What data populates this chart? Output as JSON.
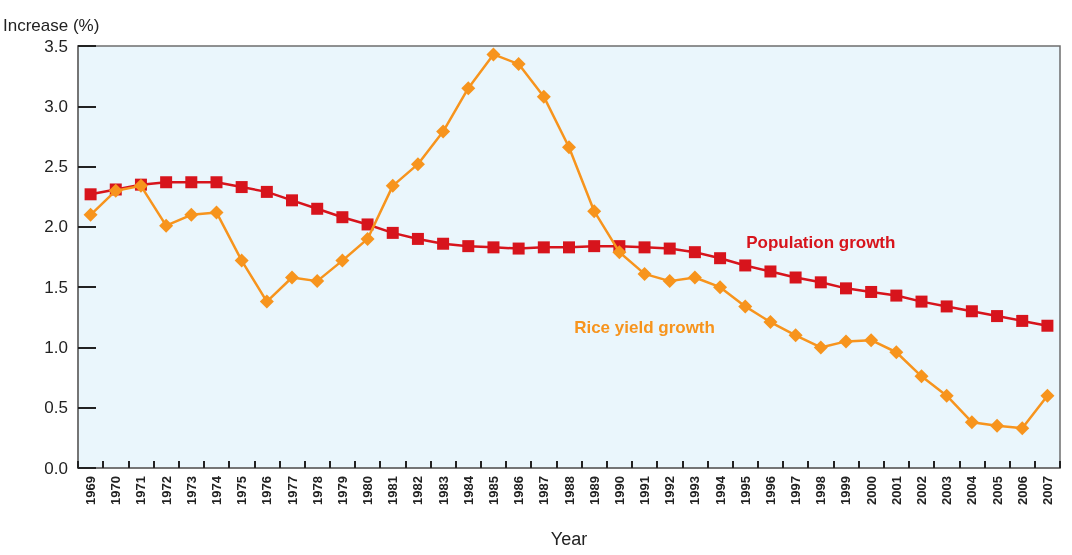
{
  "chart_data": {
    "type": "line",
    "xlabel": "Year",
    "ylabel": "Increase (%)",
    "categories": [
      "1969",
      "1970",
      "1971",
      "1972",
      "1973",
      "1974",
      "1975",
      "1976",
      "1977",
      "1978",
      "1979",
      "1980",
      "1981",
      "1982",
      "1983",
      "1984",
      "1985",
      "1986",
      "1987",
      "1988",
      "1989",
      "1990",
      "1991",
      "1992",
      "1993",
      "1994",
      "1995",
      "1996",
      "1997",
      "1998",
      "1999",
      "2000",
      "2001",
      "2002",
      "2003",
      "2004",
      "2005",
      "2006",
      "2007"
    ],
    "series": [
      {
        "name": "Population growth",
        "color": "#d7141c",
        "marker": "square",
        "values": [
          2.27,
          2.31,
          2.35,
          2.37,
          2.37,
          2.37,
          2.33,
          2.29,
          2.22,
          2.15,
          2.08,
          2.02,
          1.95,
          1.9,
          1.86,
          1.84,
          1.83,
          1.82,
          1.83,
          1.83,
          1.84,
          1.84,
          1.83,
          1.82,
          1.79,
          1.74,
          1.68,
          1.63,
          1.58,
          1.54,
          1.49,
          1.46,
          1.43,
          1.38,
          1.34,
          1.3,
          1.26,
          1.22,
          1.18
        ]
      },
      {
        "name": "Rice yield growth",
        "color": "#f7941d",
        "marker": "diamond",
        "values": [
          2.1,
          2.3,
          2.34,
          2.01,
          2.1,
          2.12,
          1.72,
          1.38,
          1.58,
          1.55,
          1.72,
          1.9,
          2.34,
          2.52,
          2.79,
          3.15,
          3.43,
          3.35,
          3.08,
          2.66,
          2.13,
          1.79,
          1.61,
          1.55,
          1.58,
          1.5,
          1.34,
          1.21,
          1.1,
          1.0,
          1.05,
          1.06,
          0.96,
          0.76,
          0.6,
          0.38,
          0.35,
          0.33,
          0.6
        ]
      }
    ],
    "ylim": [
      0,
      3.5
    ],
    "yticks": [
      {
        "value": 0,
        "label": "0.0"
      },
      {
        "value": 0.5,
        "label": "0.5"
      },
      {
        "value": 1,
        "label": "1.0"
      },
      {
        "value": 1.5,
        "label": "1.5"
      },
      {
        "value": 2,
        "label": "2.0"
      },
      {
        "value": 2.5,
        "label": "2.5"
      },
      {
        "value": 3,
        "label": "3.0"
      },
      {
        "value": 3.5,
        "label": "3.5"
      }
    ],
    "grid": false,
    "legend": false,
    "line_style": "solid"
  }
}
